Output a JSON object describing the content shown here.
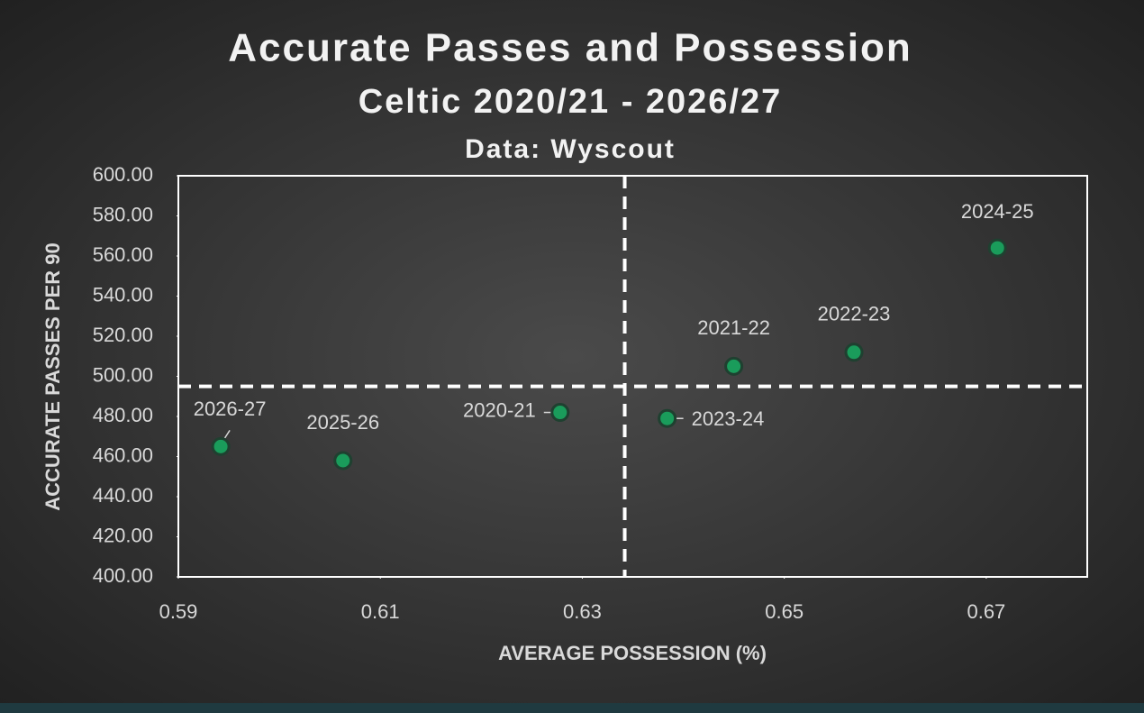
{
  "chart_data": {
    "type": "scatter",
    "title": "Accurate Passes and Possession",
    "subtitle": "Celtic 2020/21 - 2026/27",
    "note": "Data: Wyscout",
    "x_label": "AVERAGE POSSESSION (%)",
    "y_label": "ACCURATE PASSES PER 90",
    "labels": [
      "2020-21",
      "2021-22",
      "2022-23",
      "2023-24",
      "2024-25",
      "2025-26",
      "2026-27"
    ],
    "x": [
      0.6278,
      0.645,
      0.6569,
      0.6384,
      0.6711,
      0.6063,
      0.5942
    ],
    "values": [
      482,
      505,
      512,
      479,
      564,
      458,
      465
    ],
    "color": "#1a9c5b",
    "xlim": [
      0.59,
      0.68
    ],
    "xticks": [
      0.59,
      0.61,
      0.63,
      0.65,
      0.67
    ],
    "ylim": [
      400,
      600
    ],
    "yticks": [
      {
        "value": 400,
        "label": "400.00"
      },
      {
        "value": 420,
        "label": "420.00"
      },
      {
        "value": 440,
        "label": "440.00"
      },
      {
        "value": 460,
        "label": "460.00"
      },
      {
        "value": 480,
        "label": "480.00"
      },
      {
        "value": 500,
        "label": "500.00"
      },
      {
        "value": 520,
        "label": "520.00"
      },
      {
        "value": 540,
        "label": "540.00"
      },
      {
        "value": 560,
        "label": "560.00"
      },
      {
        "value": 580,
        "label": "580.00"
      },
      {
        "value": 600,
        "label": "600.00"
      }
    ],
    "ref_x": 0.6342,
    "ref_y": 495,
    "grid": false
  }
}
